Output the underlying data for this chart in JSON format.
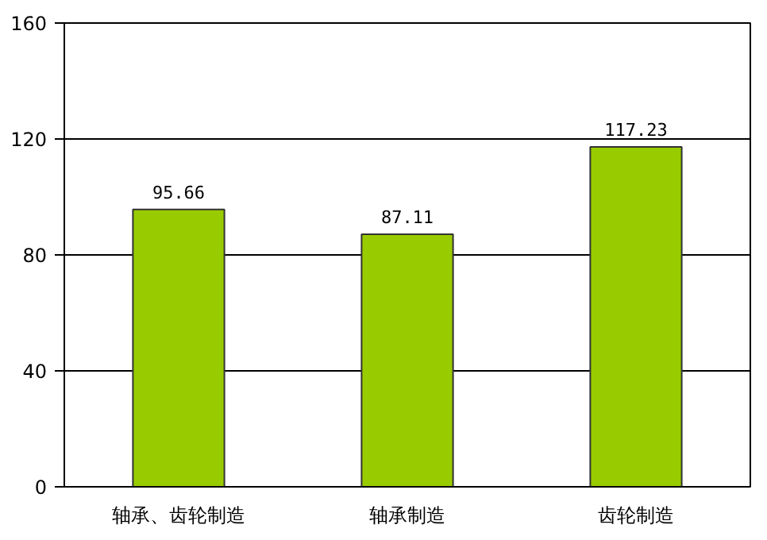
{
  "chart_data": {
    "type": "bar",
    "categories": [
      "轴承、齿轮制造",
      "轴承制造",
      "齿轮制造"
    ],
    "values": [
      95.66,
      87.11,
      117.23
    ],
    "color": "#99cc00",
    "ylim": [
      0,
      160
    ],
    "yticks": [
      0,
      40,
      80,
      120,
      160
    ],
    "grid": "y",
    "data_labels": true
  }
}
